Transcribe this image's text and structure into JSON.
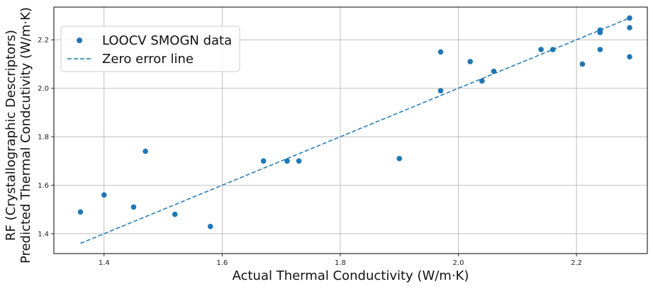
{
  "chart_data": {
    "type": "scatter",
    "title": "",
    "xlabel": "Actual Thermal Conductivity (W/m·K)",
    "ylabel_lines": [
      "RF (Crystallographic Descriptors)",
      "Predicted Thermal Condcutivity (W/m·K)"
    ],
    "xlim": [
      1.315,
      2.32
    ],
    "ylim": [
      1.318,
      2.335
    ],
    "xticks": [
      1.4,
      1.6,
      1.8,
      2.0,
      2.2
    ],
    "yticks": [
      1.4,
      1.6,
      1.8,
      2.0,
      2.2
    ],
    "xtick_labels": [
      "1.4",
      "1.6",
      "1.8",
      "2.0",
      "2.2"
    ],
    "ytick_labels": [
      "1.4",
      "1.6",
      "1.8",
      "2.0",
      "2.2"
    ],
    "grid": true,
    "legend_position": "top-left",
    "color": "#1f77b4",
    "series": [
      {
        "name": "LOOCV SMOGN data",
        "kind": "scatter",
        "x": [
          1.36,
          1.4,
          1.45,
          1.47,
          1.52,
          1.58,
          1.67,
          1.71,
          1.73,
          1.9,
          1.97,
          1.97,
          2.02,
          2.04,
          2.06,
          2.14,
          2.16,
          2.21,
          2.24,
          2.24,
          2.24,
          2.24,
          2.29,
          2.29,
          2.29
        ],
        "y": [
          1.49,
          1.56,
          1.51,
          1.74,
          1.48,
          1.43,
          1.7,
          1.7,
          1.7,
          1.71,
          2.15,
          1.99,
          2.11,
          2.03,
          2.07,
          2.16,
          2.16,
          2.1,
          2.24,
          2.24,
          2.23,
          2.16,
          2.29,
          2.25,
          2.13
        ]
      },
      {
        "name": "Zero error line",
        "kind": "line",
        "style": "dashed",
        "x": [
          1.36,
          2.29
        ],
        "y": [
          1.36,
          2.29
        ]
      }
    ]
  }
}
